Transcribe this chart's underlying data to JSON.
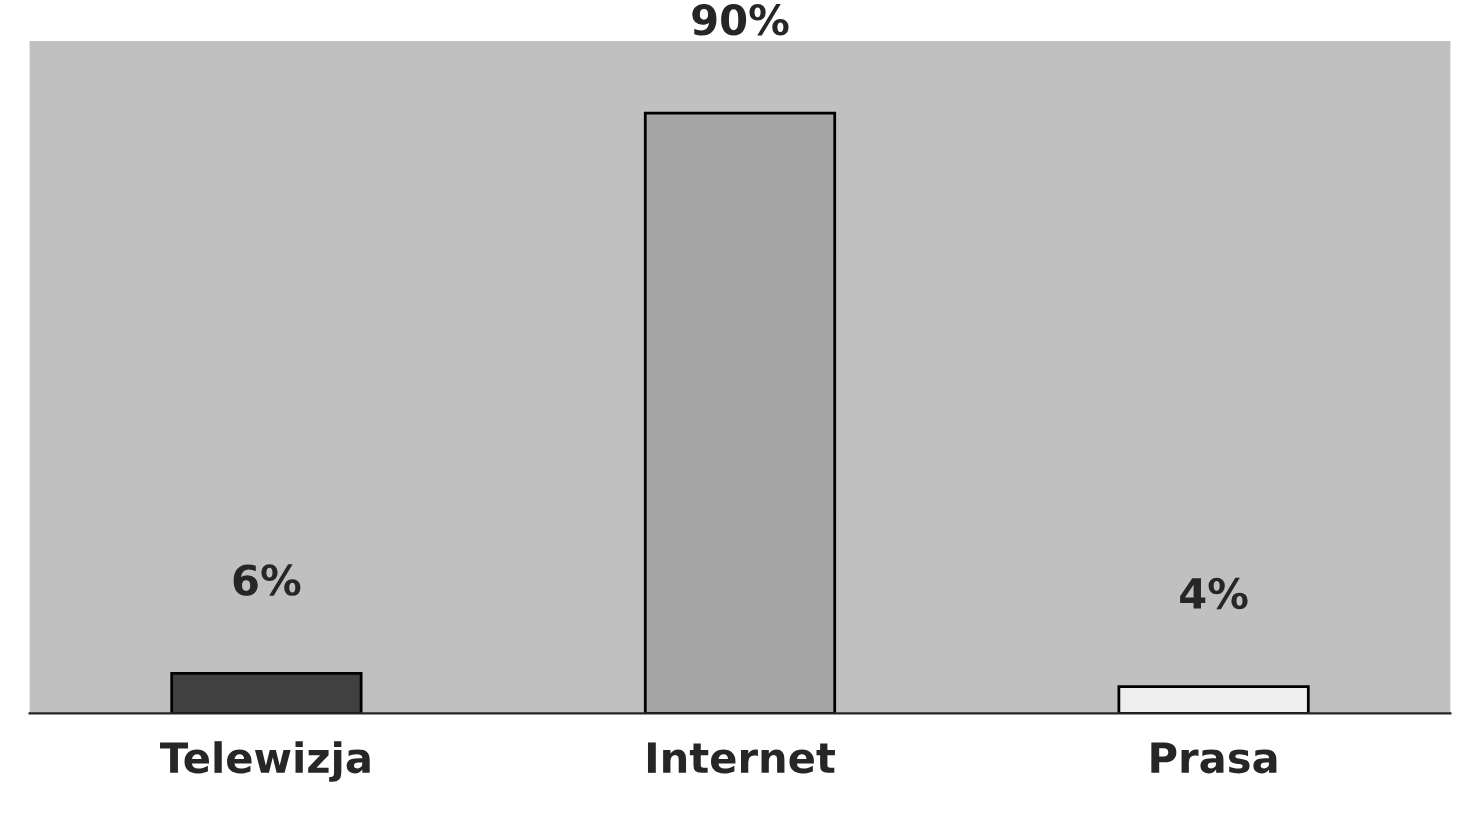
{
  "chart_data": {
    "type": "bar",
    "categories": [
      "Telewizja",
      "Internet",
      "Prasa"
    ],
    "values": [
      6,
      90,
      4
    ],
    "colors": [
      "#404040",
      "#a6a6a6",
      "#eeeeee"
    ],
    "value_labels": [
      "6%",
      "90%",
      "4%"
    ],
    "grid": false,
    "legend": false
  }
}
